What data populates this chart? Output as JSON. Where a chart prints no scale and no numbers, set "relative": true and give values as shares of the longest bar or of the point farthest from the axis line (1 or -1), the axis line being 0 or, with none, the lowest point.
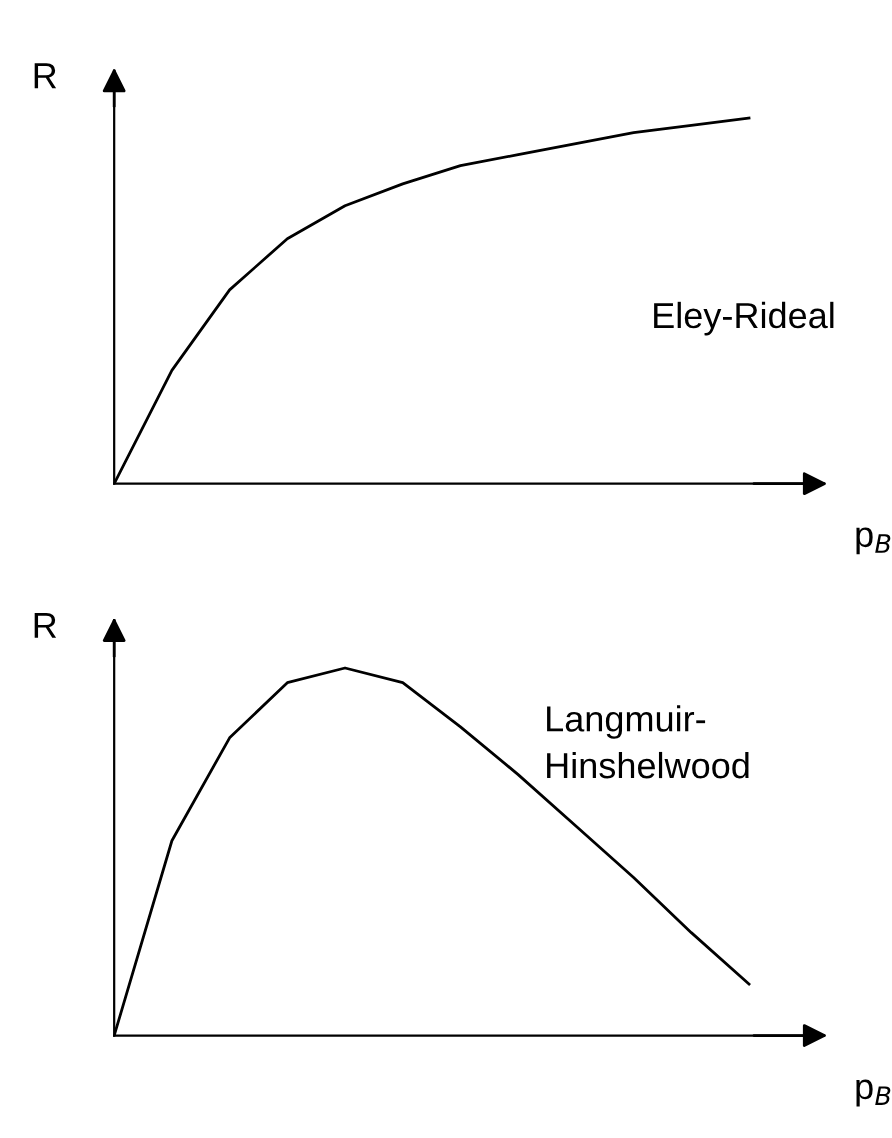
{
  "chart_data": [
    {
      "type": "line",
      "relative": true,
      "ylabel": "R",
      "xlabel": "p$_{B}$",
      "annotations": [
        "Eley-Rideal"
      ],
      "categories": [
        null,
        null,
        null,
        null,
        null,
        null,
        null,
        null,
        null,
        null,
        null,
        null
      ],
      "series": [
        {
          "color": "#000000",
          "values": [
            0,
            0.31,
            0.53,
            0.67,
            0.76,
            0.82,
            0.87,
            0.9,
            0.93,
            0.96,
            0.98,
            1
          ]
        }
      ],
      "legend": false,
      "marker": "none",
      "line_style": "solid"
    },
    {
      "type": "line",
      "relative": true,
      "ylabel": "R",
      "xlabel": "p$_{B}$",
      "annotations": [
        "Langmuir-\nHinshelwood"
      ],
      "categories": [
        null,
        null,
        null,
        null,
        null,
        null,
        null,
        null,
        null,
        null,
        null,
        null
      ],
      "series": [
        {
          "color": "#000000",
          "values": [
            0,
            0.53,
            0.81,
            0.96,
            1,
            0.96,
            0.84,
            0.71,
            0.57,
            0.43,
            0.28,
            0.14
          ]
        }
      ],
      "legend": false,
      "marker": "none",
      "line_style": "solid"
    }
  ]
}
